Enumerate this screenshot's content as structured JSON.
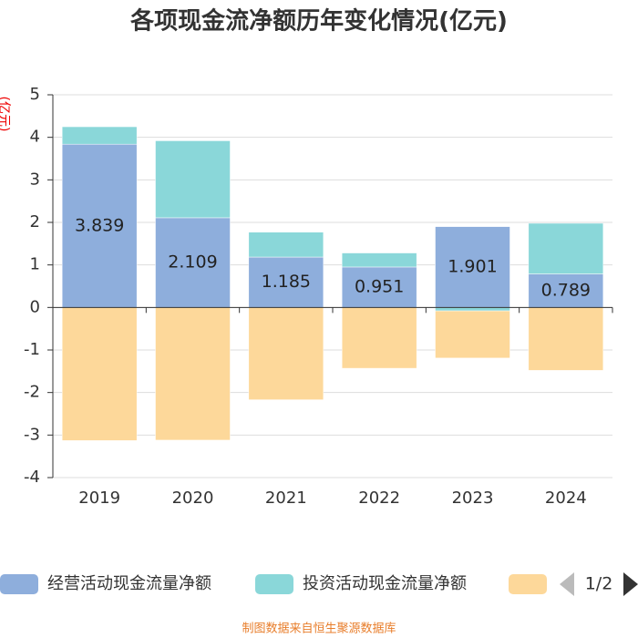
{
  "chart_data": {
    "type": "bar",
    "stacked": true,
    "title": "各项现金流净额历年变化情况(亿元)",
    "y_label": "(亿元)",
    "categories": [
      "2019",
      "2020",
      "2021",
      "2022",
      "2023",
      "2024"
    ],
    "series": [
      {
        "name": "经营活动现金流量净额",
        "color": "#8eaedc",
        "values": [
          3.839,
          2.109,
          1.185,
          0.951,
          1.901,
          0.789
        ],
        "show_labels": true
      },
      {
        "name": "投资活动现金流量净额",
        "color": "#8ad7d9",
        "values": [
          0.41,
          1.81,
          0.585,
          0.33,
          -0.08,
          1.19
        ]
      },
      {
        "name": null,
        "color": "#fdd89a",
        "values": [
          -3.13,
          -3.12,
          -2.17,
          -1.43,
          -1.11,
          -1.48
        ]
      }
    ],
    "ylim": [
      -4,
      5
    ],
    "yticks": [
      -4,
      -3,
      -2,
      -1,
      0,
      1,
      2,
      3,
      4,
      5
    ],
    "grid": true,
    "legend_page": "1/2",
    "source": "制图数据来自恒生聚源数据库"
  }
}
